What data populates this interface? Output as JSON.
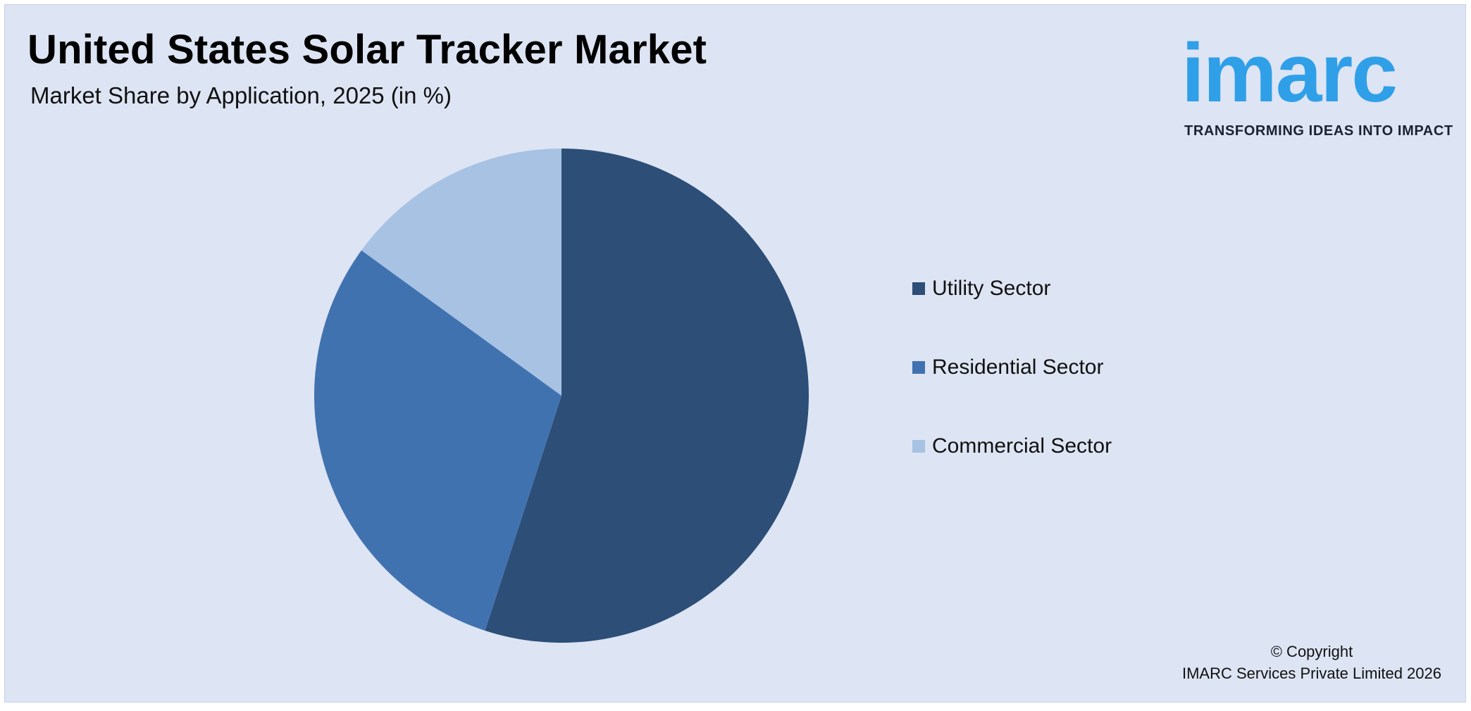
{
  "header": {
    "title": "United States Solar Tracker Market",
    "subtitle": "Market Share by Application, 2025 (in %)"
  },
  "logo": {
    "wordmark": "imarc",
    "tagline": "TRANSFORMING IDEAS INTO IMPACT",
    "color": "#2f9fe8"
  },
  "chart_data": {
    "type": "pie",
    "categories": [
      "Utility Sector",
      "Residential Sector",
      "Commercial Sector"
    ],
    "values": [
      55,
      30,
      15
    ],
    "colors": [
      "#2c4e77",
      "#4172b0",
      "#a7c2e3"
    ],
    "start_angle_deg": 0,
    "direction": "clockwise",
    "legend_position": "right"
  },
  "footer": {
    "copyright_line1": "© Copyright",
    "copyright_line2": "IMARC Services Private Limited 2026"
  }
}
